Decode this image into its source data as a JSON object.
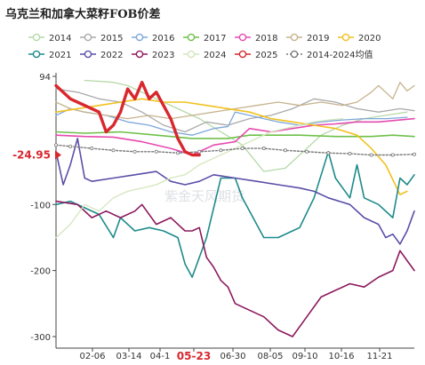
{
  "chart_data": {
    "type": "line",
    "title": "乌克兰和加拿大菜籽FOB价差",
    "watermark": "紫金天风期货",
    "y_ticks": [
      94,
      -100,
      -200,
      -300
    ],
    "ylim": [
      -312,
      94
    ],
    "x_ticks": [
      "02-06",
      "03-14",
      "04-1",
      "05-23",
      "06-30",
      "08-05",
      "09-10",
      "10-16",
      "11-21"
    ],
    "x_range": [
      1,
      51
    ],
    "highlight_x": {
      "label": "05-23",
      "x": 21
    },
    "highlight_y": {
      "label": "-24.95",
      "y": -24.95
    },
    "legend": [
      "2014",
      "2015",
      "2016",
      "2017",
      "2018",
      "2019",
      "2020",
      "2021",
      "2022",
      "2023",
      "2024",
      "2025",
      "2014-2024均值"
    ],
    "series": [
      {
        "name": "2014",
        "color": "#b5d9a7",
        "width": 1.3,
        "dash": "",
        "marker": "",
        "values": [
          [
            5,
            88
          ],
          [
            9,
            85
          ],
          [
            11,
            80
          ],
          [
            15,
            60
          ],
          [
            18,
            45
          ],
          [
            21,
            30
          ],
          [
            24,
            10
          ],
          [
            27,
            -10
          ],
          [
            30,
            -50
          ],
          [
            33,
            -45
          ],
          [
            35,
            -25
          ],
          [
            38,
            5
          ],
          [
            41,
            20
          ],
          [
            44,
            30
          ],
          [
            47,
            35
          ],
          [
            50,
            40
          ]
        ]
      },
      {
        "name": "2015",
        "color": "#aaaaaa",
        "width": 1.3,
        "dash": "",
        "marker": "",
        "values": [
          [
            1,
            75
          ],
          [
            4,
            70
          ],
          [
            7,
            60
          ],
          [
            10,
            55
          ],
          [
            13,
            40
          ],
          [
            16,
            20
          ],
          [
            19,
            10
          ],
          [
            22,
            25
          ],
          [
            25,
            20
          ],
          [
            28,
            30
          ],
          [
            31,
            35
          ],
          [
            34,
            45
          ],
          [
            37,
            60
          ],
          [
            40,
            55
          ],
          [
            43,
            45
          ],
          [
            46,
            40
          ],
          [
            49,
            45
          ],
          [
            51,
            42
          ]
        ]
      },
      {
        "name": "2016",
        "color": "#7da7d9",
        "width": 1.3,
        "dash": "",
        "marker": "",
        "values": [
          [
            1,
            35
          ],
          [
            3,
            45
          ],
          [
            5,
            40
          ],
          [
            8,
            35
          ],
          [
            11,
            25
          ],
          [
            14,
            20
          ],
          [
            17,
            10
          ],
          [
            20,
            5
          ],
          [
            23,
            15
          ],
          [
            25,
            18
          ],
          [
            26,
            40
          ],
          [
            28,
            35
          ],
          [
            30,
            30
          ],
          [
            32,
            25
          ],
          [
            35,
            20
          ],
          [
            38,
            25
          ],
          [
            41,
            28
          ],
          [
            44,
            30
          ],
          [
            47,
            30
          ],
          [
            50,
            32
          ]
        ]
      },
      {
        "name": "2017",
        "color": "#6ec04a",
        "width": 1.6,
        "dash": "",
        "marker": "",
        "values": [
          [
            1,
            10
          ],
          [
            5,
            8
          ],
          [
            10,
            10
          ],
          [
            15,
            5
          ],
          [
            20,
            0
          ],
          [
            25,
            0
          ],
          [
            28,
            5
          ],
          [
            31,
            5
          ],
          [
            35,
            5
          ],
          [
            40,
            3
          ],
          [
            45,
            3
          ],
          [
            48,
            5
          ],
          [
            51,
            3
          ]
        ]
      },
      {
        "name": "2018",
        "color": "#e64ab0",
        "width": 1.6,
        "dash": "",
        "marker": "",
        "values": [
          [
            1,
            5
          ],
          [
            5,
            3
          ],
          [
            9,
            2
          ],
          [
            13,
            -5
          ],
          [
            17,
            -15
          ],
          [
            20,
            -25
          ],
          [
            23,
            -10
          ],
          [
            26,
            -5
          ],
          [
            28,
            15
          ],
          [
            31,
            10
          ],
          [
            34,
            15
          ],
          [
            37,
            20
          ],
          [
            40,
            22
          ],
          [
            43,
            25
          ],
          [
            46,
            25
          ],
          [
            49,
            28
          ],
          [
            51,
            30
          ]
        ]
      },
      {
        "name": "2019",
        "color": "#c7b38e",
        "width": 1.3,
        "dash": "",
        "marker": "",
        "values": [
          [
            1,
            55
          ],
          [
            3,
            45
          ],
          [
            5,
            40
          ],
          [
            8,
            35
          ],
          [
            11,
            30
          ],
          [
            14,
            35
          ],
          [
            17,
            30
          ],
          [
            20,
            35
          ],
          [
            23,
            40
          ],
          [
            26,
            45
          ],
          [
            29,
            50
          ],
          [
            32,
            55
          ],
          [
            35,
            50
          ],
          [
            38,
            55
          ],
          [
            41,
            50
          ],
          [
            43,
            55
          ],
          [
            45,
            70
          ],
          [
            46,
            80
          ],
          [
            47,
            70
          ],
          [
            48,
            60
          ],
          [
            49,
            85
          ],
          [
            50,
            72
          ],
          [
            51,
            80
          ]
        ]
      },
      {
        "name": "2020",
        "color": "#f2c11f",
        "width": 1.6,
        "dash": "",
        "marker": "",
        "values": [
          [
            1,
            40
          ],
          [
            4,
            45
          ],
          [
            7,
            50
          ],
          [
            10,
            55
          ],
          [
            13,
            60
          ],
          [
            16,
            55
          ],
          [
            19,
            55
          ],
          [
            22,
            50
          ],
          [
            25,
            45
          ],
          [
            28,
            40
          ],
          [
            31,
            30
          ],
          [
            34,
            25
          ],
          [
            37,
            20
          ],
          [
            40,
            15
          ],
          [
            43,
            5
          ],
          [
            45,
            -15
          ],
          [
            47,
            -40
          ],
          [
            49,
            -85
          ],
          [
            50,
            -80
          ]
        ]
      },
      {
        "name": "2021",
        "color": "#1e8a8a",
        "width": 1.6,
        "dash": "",
        "marker": "",
        "values": [
          [
            1,
            -100
          ],
          [
            3,
            -95
          ],
          [
            5,
            -105
          ],
          [
            7,
            -115
          ],
          [
            9,
            -150
          ],
          [
            10,
            -120
          ],
          [
            12,
            -140
          ],
          [
            14,
            -135
          ],
          [
            16,
            -140
          ],
          [
            18,
            -150
          ],
          [
            19,
            -190
          ],
          [
            20,
            -210
          ],
          [
            22,
            -150
          ],
          [
            24,
            -60
          ],
          [
            26,
            -60
          ],
          [
            27,
            -90
          ],
          [
            29,
            -130
          ],
          [
            30,
            -150
          ],
          [
            32,
            -150
          ],
          [
            34,
            -140
          ],
          [
            35,
            -135
          ],
          [
            37,
            -90
          ],
          [
            39,
            -20
          ],
          [
            40,
            -60
          ],
          [
            42,
            -90
          ],
          [
            43,
            -40
          ],
          [
            44,
            -90
          ],
          [
            46,
            -100
          ],
          [
            48,
            -120
          ],
          [
            49,
            -60
          ],
          [
            50,
            -70
          ],
          [
            51,
            -55
          ]
        ]
      },
      {
        "name": "2022",
        "color": "#5a4fa8",
        "width": 1.6,
        "dash": "",
        "marker": "",
        "values": [
          [
            1,
            -20
          ],
          [
            2,
            -70
          ],
          [
            3,
            -40
          ],
          [
            4,
            0
          ],
          [
            5,
            -60
          ],
          [
            6,
            -65
          ],
          [
            9,
            -60
          ],
          [
            12,
            -55
          ],
          [
            15,
            -50
          ],
          [
            17,
            -65
          ],
          [
            19,
            -70
          ],
          [
            21,
            -65
          ],
          [
            23,
            -55
          ],
          [
            26,
            -60
          ],
          [
            29,
            -65
          ],
          [
            32,
            -70
          ],
          [
            35,
            -75
          ],
          [
            37,
            -80
          ],
          [
            39,
            -90
          ],
          [
            42,
            -100
          ],
          [
            44,
            -120
          ],
          [
            46,
            -130
          ],
          [
            47,
            -150
          ],
          [
            48,
            -145
          ],
          [
            49,
            -160
          ],
          [
            50,
            -140
          ],
          [
            51,
            -110
          ]
        ]
      },
      {
        "name": "2023",
        "color": "#8c1a5e",
        "width": 1.6,
        "dash": "",
        "marker": "",
        "values": [
          [
            1,
            -95
          ],
          [
            4,
            -100
          ],
          [
            6,
            -120
          ],
          [
            8,
            -110
          ],
          [
            10,
            -120
          ],
          [
            12,
            -110
          ],
          [
            13,
            -100
          ],
          [
            15,
            -130
          ],
          [
            17,
            -120
          ],
          [
            19,
            -140
          ],
          [
            20,
            -140
          ],
          [
            21,
            -135
          ],
          [
            22,
            -180
          ],
          [
            23,
            -195
          ],
          [
            24,
            -215
          ],
          [
            25,
            -225
          ],
          [
            26,
            -250
          ],
          [
            28,
            -260
          ],
          [
            30,
            -270
          ],
          [
            32,
            -290
          ],
          [
            34,
            -300
          ],
          [
            36,
            -270
          ],
          [
            38,
            -240
          ],
          [
            40,
            -230
          ],
          [
            42,
            -220
          ],
          [
            44,
            -225
          ],
          [
            46,
            -210
          ],
          [
            48,
            -200
          ],
          [
            49,
            -170
          ],
          [
            50,
            -185
          ],
          [
            51,
            -200
          ]
        ]
      },
      {
        "name": "2024",
        "color": "#d3e6bd",
        "width": 1.3,
        "dash": "",
        "marker": "",
        "values": [
          [
            1,
            -150
          ],
          [
            3,
            -130
          ],
          [
            5,
            -100
          ],
          [
            7,
            -110
          ],
          [
            9,
            -90
          ],
          [
            11,
            -80
          ],
          [
            13,
            -75
          ],
          [
            15,
            -70
          ],
          [
            17,
            -60
          ],
          [
            19,
            -55
          ],
          [
            21,
            -40
          ],
          [
            23,
            -30
          ],
          [
            25,
            -20
          ],
          [
            27,
            -10
          ],
          [
            29,
            0
          ],
          [
            31,
            10
          ],
          [
            33,
            15
          ],
          [
            35,
            20
          ],
          [
            37,
            25
          ],
          [
            39,
            28
          ],
          [
            41,
            30
          ]
        ]
      },
      {
        "name": "2025",
        "color": "#d9272e",
        "width": 3.4,
        "dash": "",
        "marker": "",
        "values": [
          [
            1,
            80
          ],
          [
            3,
            60
          ],
          [
            5,
            50
          ],
          [
            7,
            40
          ],
          [
            8,
            10
          ],
          [
            9,
            20
          ],
          [
            10,
            40
          ],
          [
            11,
            75
          ],
          [
            12,
            60
          ],
          [
            13,
            85
          ],
          [
            14,
            60
          ],
          [
            15,
            70
          ],
          [
            16,
            50
          ],
          [
            17,
            30
          ],
          [
            18,
            0
          ],
          [
            19,
            -20
          ],
          [
            20,
            -25
          ],
          [
            21,
            -24.95
          ]
        ]
      },
      {
        "name": "2014-2024均值",
        "color": "#7a7a7a",
        "width": 1.4,
        "dash": "2,2",
        "marker": "circle",
        "values": [
          [
            1,
            -10
          ],
          [
            3,
            -12
          ],
          [
            6,
            -15
          ],
          [
            9,
            -18
          ],
          [
            12,
            -20
          ],
          [
            15,
            -20
          ],
          [
            18,
            -22
          ],
          [
            21,
            -20
          ],
          [
            24,
            -18
          ],
          [
            27,
            -15
          ],
          [
            30,
            -15
          ],
          [
            33,
            -18
          ],
          [
            36,
            -20
          ],
          [
            39,
            -22
          ],
          [
            42,
            -23
          ],
          [
            45,
            -25
          ],
          [
            48,
            -25
          ],
          [
            51,
            -24
          ]
        ]
      }
    ]
  }
}
